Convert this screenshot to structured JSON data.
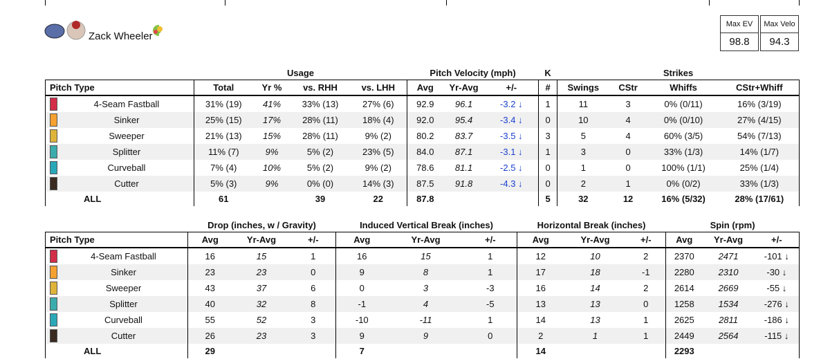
{
  "player": {
    "name": "Zack Wheeler"
  },
  "stats": [
    {
      "label": "Max EV",
      "value": "98.8"
    },
    {
      "label": "Max Velo",
      "value": "94.3"
    }
  ],
  "tables": [
    {
      "groups": [
        "Usage",
        "Pitch Velocity (mph)",
        "K",
        "Strikes"
      ],
      "columns": [
        "Pitch Type",
        "Total",
        "Yr %",
        "vs. RHH",
        "vs. LHH",
        "Avg",
        "Yr-Avg",
        "+/-",
        "#",
        "Swings",
        "CStr",
        "Whiffs",
        "CStr+Whiff"
      ],
      "rows": [
        {
          "pitch": "4-Seam Fastball",
          "color": "#d22d49",
          "cells": [
            "31% (19)",
            "41%",
            "33% (13)",
            "27% (6)",
            "92.9",
            "96.1",
            "-3.2 ↓",
            "1",
            "11",
            "3",
            "0% (0/11)",
            "16% (3/19)"
          ]
        },
        {
          "pitch": "Sinker",
          "color": "#f5a030",
          "cells": [
            "25% (15)",
            "17%",
            "28% (11)",
            "18% (4)",
            "92.0",
            "95.4",
            "-3.4 ↓",
            "0",
            "10",
            "4",
            "0% (0/10)",
            "27% (4/15)"
          ]
        },
        {
          "pitch": "Sweeper",
          "color": "#ddb33a",
          "cells": [
            "21% (13)",
            "15%",
            "28% (11)",
            "9% (2)",
            "80.2",
            "83.7",
            "-3.5 ↓",
            "3",
            "5",
            "4",
            "60% (3/5)",
            "54% (7/13)"
          ]
        },
        {
          "pitch": "Splitter",
          "color": "#3bacac",
          "cells": [
            "11% (7)",
            "9%",
            "5% (2)",
            "23% (5)",
            "84.0",
            "87.1",
            "-3.1 ↓",
            "1",
            "3",
            "0",
            "33% (1/3)",
            "14% (1/7)"
          ]
        },
        {
          "pitch": "Curveball",
          "color": "#2aa8b8",
          "cells": [
            "7% (4)",
            "10%",
            "5% (2)",
            "9% (2)",
            "78.6",
            "81.1",
            "-2.5 ↓",
            "0",
            "1",
            "0",
            "100% (1/1)",
            "25% (1/4)"
          ]
        },
        {
          "pitch": "Cutter",
          "color": "#3a2a20",
          "cells": [
            "5% (3)",
            "9%",
            "0% (0)",
            "14% (3)",
            "87.5",
            "91.8",
            "-4.3 ↓",
            "0",
            "2",
            "1",
            "0% (0/2)",
            "33% (1/3)"
          ]
        },
        {
          "pitch": "ALL",
          "cells": [
            "61",
            null,
            "39",
            "22",
            "87.8",
            null,
            null,
            "5",
            "32",
            "12",
            "16% (5/32)",
            "28% (17/61)"
          ]
        }
      ]
    },
    {
      "groups": [
        "Drop (inches, w / Gravity)",
        "Induced Vertical Break (inches)",
        "Horizontal Break (inches)",
        "Spin (rpm)"
      ],
      "columns": [
        "Pitch Type",
        "Avg",
        "Yr-Avg",
        "+/-",
        "Avg",
        "Yr-Avg",
        "+/-",
        "Avg",
        "Yr-Avg",
        "+/-",
        "Avg",
        "Yr-Avg",
        "+/-"
      ],
      "rows": [
        {
          "pitch": "4-Seam Fastball",
          "color": "#d22d49",
          "cells": [
            "16",
            "15",
            "1",
            "16",
            "15",
            "1",
            "12",
            "10",
            "2",
            "2370",
            "2471",
            "-101 ↓"
          ]
        },
        {
          "pitch": "Sinker",
          "color": "#f5a030",
          "cells": [
            "23",
            "23",
            "0",
            "9",
            "8",
            "1",
            "17",
            "18",
            "-1",
            "2280",
            "2310",
            "-30 ↓"
          ]
        },
        {
          "pitch": "Sweeper",
          "color": "#ddb33a",
          "cells": [
            "43",
            "37",
            "6",
            "0",
            "3",
            "-3",
            "16",
            "14",
            "2",
            "2614",
            "2669",
            "-55 ↓"
          ]
        },
        {
          "pitch": "Splitter",
          "color": "#3bacac",
          "cells": [
            "40",
            "32",
            "8",
            "-1",
            "4",
            "-5",
            "13",
            "13",
            "0",
            "1258",
            "1534",
            "-276 ↓"
          ]
        },
        {
          "pitch": "Curveball",
          "color": "#2aa8b8",
          "cells": [
            "55",
            "52",
            "3",
            "-10",
            "-11",
            "1",
            "14",
            "13",
            "1",
            "2625",
            "2811",
            "-186 ↓"
          ]
        },
        {
          "pitch": "Cutter",
          "color": "#3a2a20",
          "cells": [
            "26",
            "23",
            "3",
            "9",
            "9",
            "0",
            "2",
            "1",
            "1",
            "2449",
            "2564",
            "-115 ↓"
          ]
        },
        {
          "pitch": "ALL",
          "cells": [
            "29",
            null,
            null,
            "7",
            null,
            null,
            "14",
            null,
            null,
            "2293",
            null,
            null
          ]
        }
      ]
    }
  ]
}
